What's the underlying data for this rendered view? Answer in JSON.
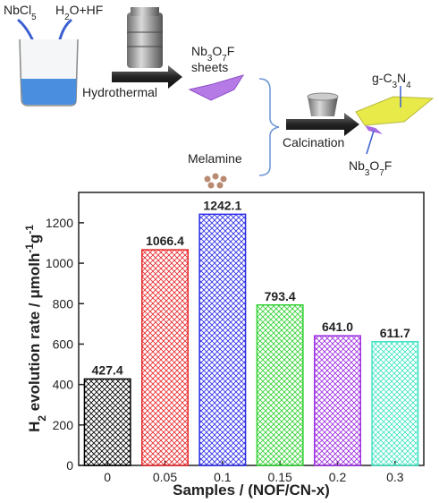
{
  "diagram": {
    "reagent_1": {
      "parts": [
        {
          "text": "NbCl"
        },
        {
          "text": "5",
          "script": "sub"
        }
      ]
    },
    "reagent_2": {
      "parts": [
        {
          "text": "H"
        },
        {
          "text": "2",
          "script": "sub"
        },
        {
          "text": "O+HF"
        }
      ]
    },
    "step_1": {
      "parts": [
        {
          "text": "Hydrothermal"
        }
      ]
    },
    "product_1_line_1": {
      "parts": [
        {
          "text": "Nb"
        },
        {
          "text": "3",
          "script": "sub"
        },
        {
          "text": "O"
        },
        {
          "text": "7",
          "script": "sub"
        },
        {
          "text": "F"
        }
      ]
    },
    "product_1_line_2": {
      "parts": [
        {
          "text": "sheets"
        }
      ]
    },
    "reagent_3": {
      "parts": [
        {
          "text": "Melamine"
        }
      ]
    },
    "step_2": {
      "parts": [
        {
          "text": "Calcination"
        }
      ]
    },
    "product_2_top": {
      "parts": [
        {
          "text": "g-C"
        },
        {
          "text": "3",
          "script": "sub"
        },
        {
          "text": "N"
        },
        {
          "text": "4",
          "script": "sub"
        }
      ]
    },
    "product_2_bottom": {
      "parts": [
        {
          "text": "Nb"
        },
        {
          "text": "3",
          "script": "sub"
        },
        {
          "text": "O"
        },
        {
          "text": "7",
          "script": "sub"
        },
        {
          "text": "F"
        }
      ]
    }
  },
  "chart_data": {
    "type": "bar",
    "ylabel": {
      "parts": [
        {
          "text": "H"
        },
        {
          "text": "2",
          "script": "sub"
        },
        {
          "text": " evolution rate / μmolh"
        },
        {
          "text": "-1",
          "script": "sup"
        },
        {
          "text": "g"
        },
        {
          "text": "-1",
          "script": "sup"
        }
      ]
    },
    "xlabel": "Samples / (NOF/CN-x)",
    "categories": [
      "0",
      "0.05",
      "0.1",
      "0.15",
      "0.2",
      "0.3"
    ],
    "values": [
      427.4,
      1066.4,
      1242.1,
      793.4,
      641.0,
      611.7
    ],
    "value_labels": [
      "427.4",
      "1066.4",
      "1242.1",
      "793.4",
      "641.0",
      "611.7"
    ],
    "colors": [
      "#000000",
      "#e8262a",
      "#2a2ae6",
      "#2fd12f",
      "#9b2be0",
      "#3fe3c3"
    ],
    "pattern": "crosshatch",
    "ylim": [
      0,
      1350
    ],
    "yticks": [
      0,
      200,
      400,
      600,
      800,
      1000,
      1200
    ]
  }
}
